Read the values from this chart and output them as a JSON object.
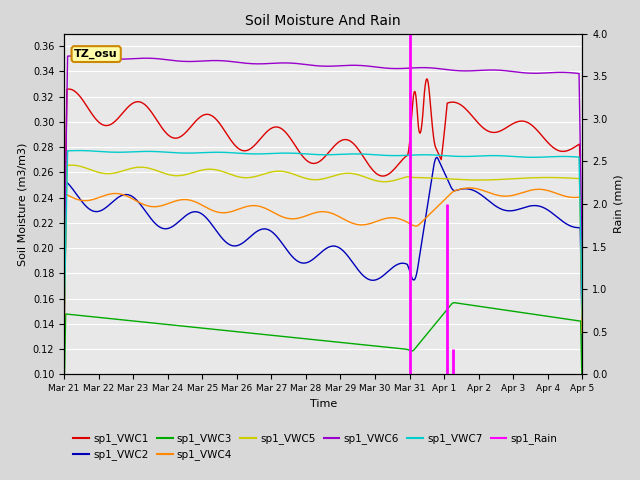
{
  "title": "Soil Moisture And Rain",
  "xlabel": "Time",
  "ylabel_left": "Soil Moisture (m3/m3)",
  "ylabel_right": "Rain (mm)",
  "annotation_text": "TZ_osu",
  "ylim_left": [
    0.1,
    0.37
  ],
  "ylim_right": [
    0.0,
    4.0
  ],
  "yticks_left": [
    0.1,
    0.12,
    0.14,
    0.16,
    0.18,
    0.2,
    0.22,
    0.24,
    0.26,
    0.28,
    0.3,
    0.32,
    0.34,
    0.36
  ],
  "yticks_right": [
    0.0,
    0.5,
    1.0,
    1.5,
    2.0,
    2.5,
    3.0,
    3.5,
    4.0
  ],
  "background_color": "#e8e8e8",
  "grid_color": "#ffffff",
  "fig_facecolor": "#d8d8d8",
  "series": {
    "VWC1": {
      "color": "#dd0000",
      "label": "sp1_VWC1"
    },
    "VWC2": {
      "color": "#0000bb",
      "label": "sp1_VWC2"
    },
    "VWC3": {
      "color": "#00aa00",
      "label": "sp1_VWC3"
    },
    "VWC4": {
      "color": "#ff8800",
      "label": "sp1_VWC4"
    },
    "VWC5": {
      "color": "#cccc00",
      "label": "sp1_VWC5"
    },
    "VWC6": {
      "color": "#9900cc",
      "label": "sp1_VWC6"
    },
    "VWC7": {
      "color": "#00cccc",
      "label": "sp1_VWC7"
    },
    "Rain": {
      "color": "#ff00ff",
      "label": "sp1_Rain"
    }
  },
  "tick_hours": [
    0,
    24,
    48,
    72,
    96,
    120,
    144,
    168,
    192,
    216,
    240,
    264,
    288,
    312,
    336,
    360
  ],
  "tick_labels": [
    "Mar 21",
    "Mar 22",
    "Mar 23",
    "Mar 24",
    "Mar 25",
    "Mar 26",
    "Mar 27",
    "Mar 28",
    "Mar 29",
    "Mar 30",
    "Mar 31",
    "Apr 1",
    "Apr 2",
    "Apr 3",
    "Apr 4",
    "Apr 5"
  ]
}
